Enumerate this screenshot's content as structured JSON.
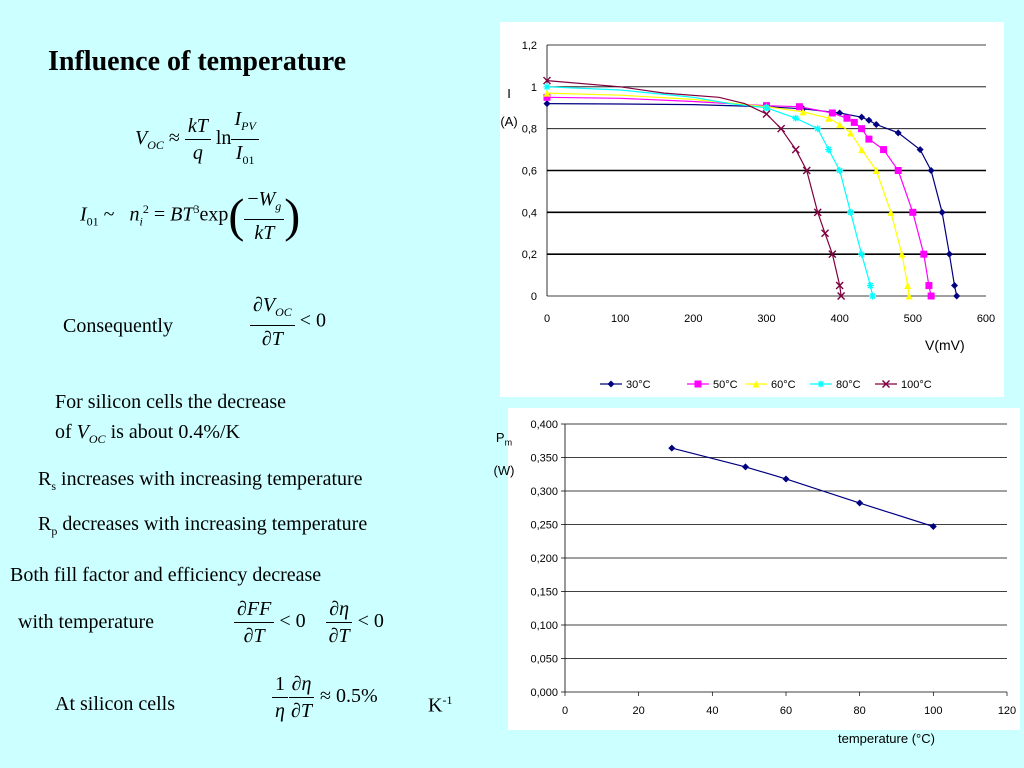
{
  "slide": {
    "title": "Influence of temperature",
    "consequently": "Consequently",
    "silicon_line1": "For silicon cells the decrease",
    "silicon_line2_pre": "of ",
    "silicon_line2_post": " is about 0.4%/K",
    "rs_text": "increases  with increasing temperature",
    "rp_text": "decreases with increasing temperature",
    "ff_line1": "Both fill factor and efficiency decrease",
    "ff_line2": "with temperature",
    "at_silicon": "At silicon cells",
    "approx_value": "≈ 0.5%",
    "unit_k": "K",
    "unit_k_exp": "-1"
  },
  "chart_data": [
    {
      "type": "line",
      "xlabel": "V(mV)",
      "ylabel": "I (A)",
      "xlim": [
        0,
        600
      ],
      "ylim": [
        0,
        1.2
      ],
      "x_ticks": [
        "0",
        "100",
        "200",
        "300",
        "400",
        "500",
        "600"
      ],
      "y_ticks": [
        "0",
        "0,2",
        "0,4",
        "0,6",
        "0,8",
        "1",
        "1,2"
      ],
      "legend_position": "bottom",
      "series": [
        {
          "name": "30°C",
          "color": "#000080",
          "marker": "diamond",
          "points": [
            [
              0,
              0.92
            ],
            [
              100,
              0.918
            ],
            [
              200,
              0.915
            ],
            [
              300,
              0.905
            ],
            [
              350,
              0.895
            ],
            [
              400,
              0.875
            ],
            [
              430,
              0.855
            ],
            [
              440,
              0.84
            ],
            [
              450,
              0.82
            ],
            [
              480,
              0.78
            ],
            [
              510,
              0.7
            ],
            [
              525,
              0.6
            ],
            [
              540,
              0.4
            ],
            [
              550,
              0.2
            ],
            [
              557,
              0.05
            ],
            [
              560,
              0.0
            ]
          ]
        },
        {
          "name": "50°C",
          "color": "#ff00ff",
          "marker": "square",
          "points": [
            [
              0,
              0.95
            ],
            [
              100,
              0.945
            ],
            [
              200,
              0.93
            ],
            [
              300,
              0.91
            ],
            [
              345,
              0.905
            ],
            [
              390,
              0.875
            ],
            [
              410,
              0.85
            ],
            [
              420,
              0.83
            ],
            [
              430,
              0.8
            ],
            [
              440,
              0.75
            ],
            [
              460,
              0.7
            ],
            [
              480,
              0.6
            ],
            [
              500,
              0.4
            ],
            [
              515,
              0.2
            ],
            [
              522,
              0.05
            ],
            [
              525,
              0.0
            ]
          ]
        },
        {
          "name": "60°C",
          "color": "#ffff00",
          "marker": "triangle",
          "points": [
            [
              0,
              0.97
            ],
            [
              100,
              0.96
            ],
            [
              200,
              0.94
            ],
            [
              300,
              0.905
            ],
            [
              350,
              0.88
            ],
            [
              385,
              0.85
            ],
            [
              400,
              0.82
            ],
            [
              415,
              0.78
            ],
            [
              430,
              0.7
            ],
            [
              450,
              0.6
            ],
            [
              470,
              0.4
            ],
            [
              485,
              0.2
            ],
            [
              493,
              0.05
            ],
            [
              495,
              0.0
            ]
          ]
        },
        {
          "name": "80°C",
          "color": "#00ffff",
          "marker": "star",
          "points": [
            [
              0,
              1.0
            ],
            [
              100,
              0.985
            ],
            [
              200,
              0.95
            ],
            [
              250,
              0.92
            ],
            [
              300,
              0.9
            ],
            [
              340,
              0.85
            ],
            [
              370,
              0.8
            ],
            [
              385,
              0.7
            ],
            [
              400,
              0.6
            ],
            [
              415,
              0.4
            ],
            [
              430,
              0.2
            ],
            [
              442,
              0.05
            ],
            [
              445,
              0.0
            ]
          ]
        },
        {
          "name": "100°C",
          "color": "#800040",
          "marker": "x",
          "points": [
            [
              0,
              1.03
            ],
            [
              100,
              1.0
            ],
            [
              160,
              0.97
            ],
            [
              235,
              0.95
            ],
            [
              270,
              0.92
            ],
            [
              300,
              0.87
            ],
            [
              320,
              0.8
            ],
            [
              340,
              0.7
            ],
            [
              355,
              0.6
            ],
            [
              370,
              0.4
            ],
            [
              380,
              0.3
            ],
            [
              390,
              0.2
            ],
            [
              400,
              0.05
            ],
            [
              402,
              0.0
            ]
          ]
        }
      ]
    },
    {
      "type": "line",
      "xlabel": "temperature (°C)",
      "ylabel": "Pm (W)",
      "xlim": [
        0,
        120
      ],
      "ylim": [
        0,
        0.4
      ],
      "x_ticks": [
        "0",
        "20",
        "40",
        "60",
        "80",
        "100",
        "120"
      ],
      "y_ticks": [
        "0,000",
        "0,050",
        "0,100",
        "0,150",
        "0,200",
        "0,250",
        "0,300",
        "0,350",
        "0,400"
      ],
      "series": [
        {
          "color": "#000080",
          "x": [
            29,
            49,
            60,
            80,
            100
          ],
          "y": [
            0.364,
            0.336,
            0.318,
            0.282,
            0.247
          ]
        }
      ]
    }
  ]
}
